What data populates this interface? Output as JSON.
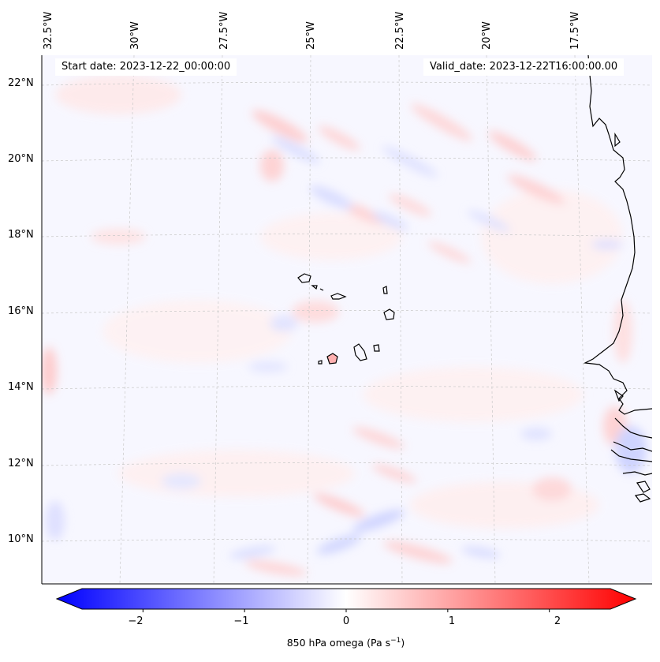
{
  "header": {
    "start_date": "Start date: 2023-12-22_00:00:00",
    "valid_date": "Valid_date: 2023-12-22T16:00:00.00"
  },
  "map": {
    "lon_labels": [
      "32.5°W",
      "30°W",
      "27.5°W",
      "25°W",
      "22.5°W",
      "20°W",
      "17.5°W"
    ],
    "lat_labels": [
      "22°N",
      "20°N",
      "18°N",
      "16°N",
      "14°N",
      "12°N",
      "10°N"
    ],
    "field": "850 hPa omega"
  },
  "colorbar": {
    "ticks": [
      "−2",
      "−1",
      "0",
      "1",
      "2"
    ],
    "tick_values": [
      -2,
      -1,
      0,
      1,
      2
    ],
    "range": [
      -2.6,
      2.6
    ],
    "label_main": "850 hPa omega (Pa s",
    "label_sup": "−1",
    "label_close": ")",
    "colors": {
      "negative": "#0000ff",
      "zero": "#ffffff",
      "positive": "#ff0000"
    }
  }
}
